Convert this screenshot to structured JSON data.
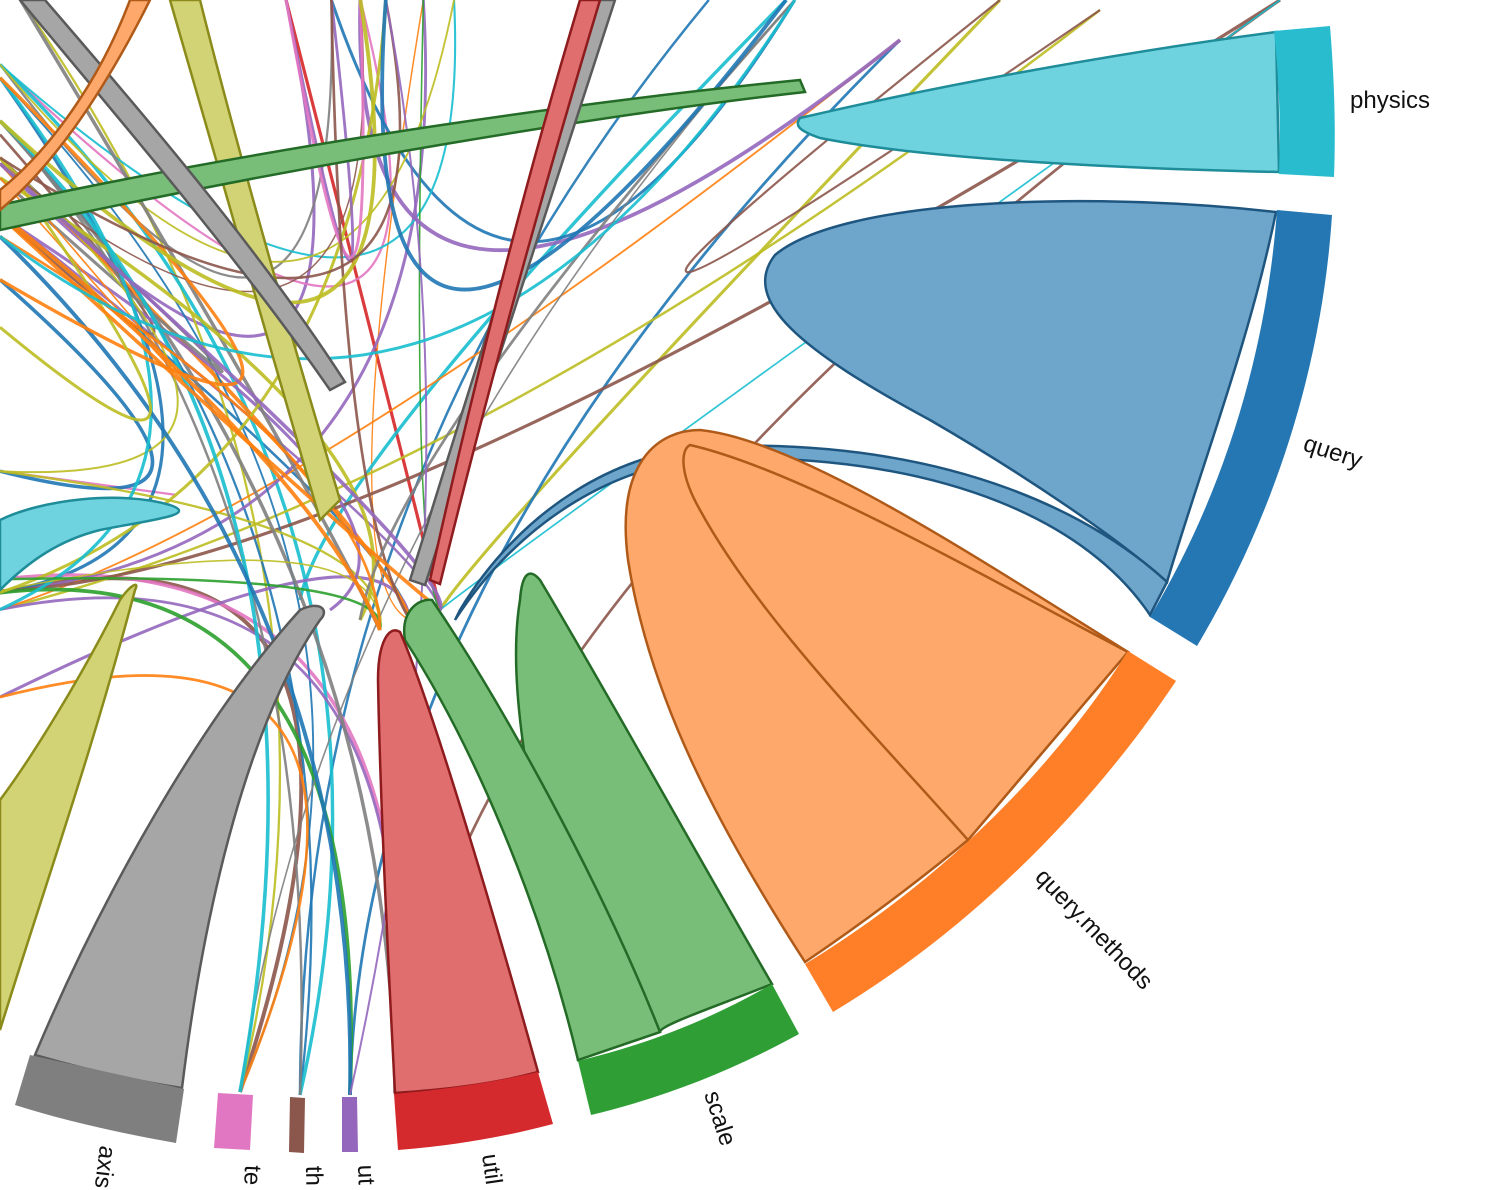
{
  "diagram": {
    "type": "chord",
    "groups": [
      {
        "id": "physics",
        "label": "physics",
        "color": "#29bccf"
      },
      {
        "id": "query",
        "label": "query",
        "color": "#2577b4"
      },
      {
        "id": "query-methods",
        "label": "query.methods",
        "color": "#fe7f27"
      },
      {
        "id": "scale",
        "label": "scale",
        "color": "#2f9f35"
      },
      {
        "id": "util",
        "label": "util",
        "color": "#d52a2d"
      },
      {
        "id": "ut",
        "label": "ut",
        "color": "#9466bc"
      },
      {
        "id": "th",
        "label": "th",
        "color": "#8b564b"
      },
      {
        "id": "te",
        "label": "te",
        "color": "#e177c2"
      },
      {
        "id": "axis",
        "label": "axis",
        "color": "#7f7f7f"
      }
    ],
    "other_colors": [
      "#bcbd22",
      "#17becf",
      "#1f77b4",
      "#ff7f0e",
      "#2ca02c",
      "#d62728",
      "#9467bd",
      "#8c564b",
      "#e377c2",
      "#7f7f7f"
    ]
  }
}
